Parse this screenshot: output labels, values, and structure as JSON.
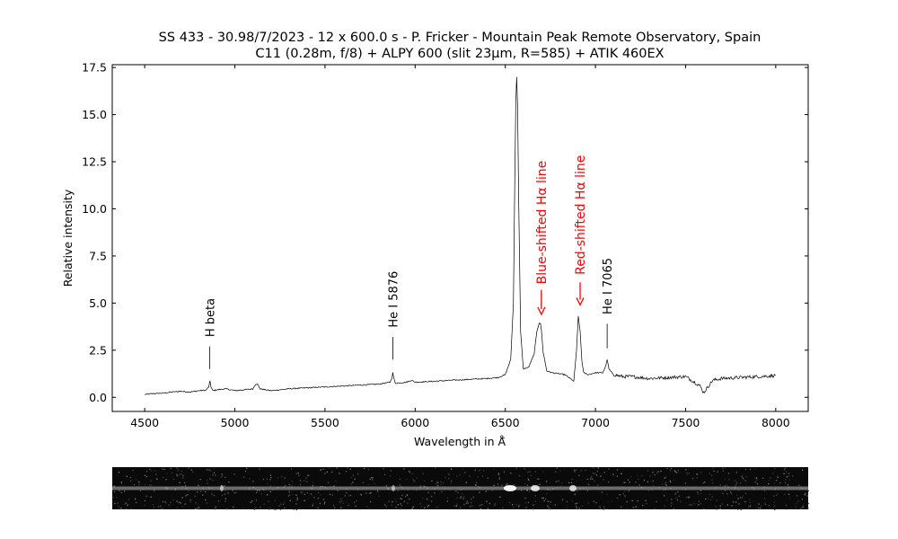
{
  "chart_data": {
    "type": "line",
    "title": "SS 433 - 30.98/7/2023 - 12 x 600.0 s - P. Fricker - Mountain Peak Remote Observatory, Spain",
    "subtitle": "C11 (0.28m, f/8) + ALPY 600 (slit 23µm, R=585) + ATIK 460EX",
    "xlabel": "Wavelength in Å̃",
    "ylabel": "Relative intensity",
    "xlim": [
      4320,
      8180
    ],
    "ylim": [
      -0.75,
      17.65
    ],
    "x_ticks": [
      4500,
      5000,
      5500,
      6000,
      6500,
      7000,
      7500,
      8000
    ],
    "x_tick_labels": [
      "4500",
      "5000",
      "5500",
      "6000",
      "6500",
      "7000",
      "7500",
      "8000"
    ],
    "y_ticks": [
      0.0,
      2.5,
      5.0,
      7.5,
      10.0,
      12.5,
      15.0,
      17.5
    ],
    "y_tick_labels": [
      "0.0",
      "2.5",
      "5.0",
      "7.5",
      "10.0",
      "12.5",
      "15.0",
      "17.5"
    ],
    "grid": false,
    "line_color": "#000000",
    "series": [
      {
        "x": [
          4500,
          4550,
          4600,
          4650,
          4700,
          4750,
          4800,
          4840,
          4855,
          4862,
          4868,
          4878,
          4900,
          4950,
          5000,
          5050,
          5100,
          5115,
          5125,
          5140,
          5200,
          5300,
          5400,
          5500,
          5600,
          5700,
          5800,
          5860,
          5870,
          5876,
          5882,
          5890,
          5950,
          5980,
          6000,
          6100,
          6200,
          6300,
          6400,
          6460,
          6500,
          6530,
          6545,
          6552,
          6558,
          6563,
          6568,
          6575,
          6585,
          6600,
          6630,
          6660,
          6675,
          6688,
          6695,
          6700,
          6710,
          6730,
          6760,
          6800,
          6830,
          6860,
          6880,
          6895,
          6905,
          6915,
          6925,
          6935,
          6960,
          7000,
          7040,
          7055,
          7065,
          7075,
          7100,
          7150,
          7200,
          7300,
          7400,
          7500,
          7550,
          7580,
          7600,
          7620,
          7650,
          7700,
          7800,
          7900,
          8000
        ],
        "y": [
          0.15,
          0.2,
          0.22,
          0.28,
          0.32,
          0.28,
          0.35,
          0.38,
          0.55,
          0.85,
          0.55,
          0.35,
          0.4,
          0.45,
          0.35,
          0.4,
          0.45,
          0.7,
          0.7,
          0.45,
          0.35,
          0.45,
          0.5,
          0.55,
          0.6,
          0.65,
          0.7,
          0.8,
          1.0,
          1.3,
          1.0,
          0.75,
          0.8,
          0.9,
          0.8,
          0.85,
          0.9,
          0.95,
          1.0,
          1.05,
          1.2,
          2.0,
          5.0,
          11.0,
          15.5,
          17.0,
          15.5,
          10.0,
          3.5,
          1.5,
          1.6,
          2.3,
          3.5,
          3.95,
          3.9,
          3.6,
          2.4,
          1.4,
          1.3,
          1.25,
          1.2,
          1.0,
          0.85,
          2.5,
          4.3,
          3.5,
          1.9,
          1.3,
          1.2,
          1.3,
          1.3,
          1.6,
          2.0,
          1.5,
          1.2,
          1.1,
          1.1,
          1.0,
          1.05,
          1.1,
          0.8,
          0.6,
          0.25,
          0.5,
          0.9,
          1.0,
          1.05,
          1.1,
          1.15
        ]
      }
    ],
    "annotations": [
      {
        "text": "H beta",
        "x": 4861,
        "y_line": [
          1.5,
          2.7
        ],
        "y_text": 3.2,
        "color": "#000000"
      },
      {
        "text": "He I 5876",
        "x": 5876,
        "y_line": [
          2.0,
          3.2
        ],
        "y_text": 3.7,
        "color": "#000000"
      },
      {
        "text": "Blue-shifted Hα line",
        "x": 6700,
        "y_arrow": [
          5.7,
          4.4
        ],
        "y_text": 6.0,
        "color": "#ff0000"
      },
      {
        "text": "Red-shifted Hα line",
        "x": 6915,
        "y_arrow": [
          6.1,
          4.9
        ],
        "y_text": 6.5,
        "color": "#ff0000"
      },
      {
        "text": "He I 7065",
        "x": 7065,
        "y_line": [
          2.6,
          3.9
        ],
        "y_text": 4.4,
        "color": "#000000"
      }
    ],
    "inset_image": {
      "description_type": "2D spectrum strip",
      "background": "#0a0a0a",
      "trace_color": "#bdbdbd"
    }
  }
}
